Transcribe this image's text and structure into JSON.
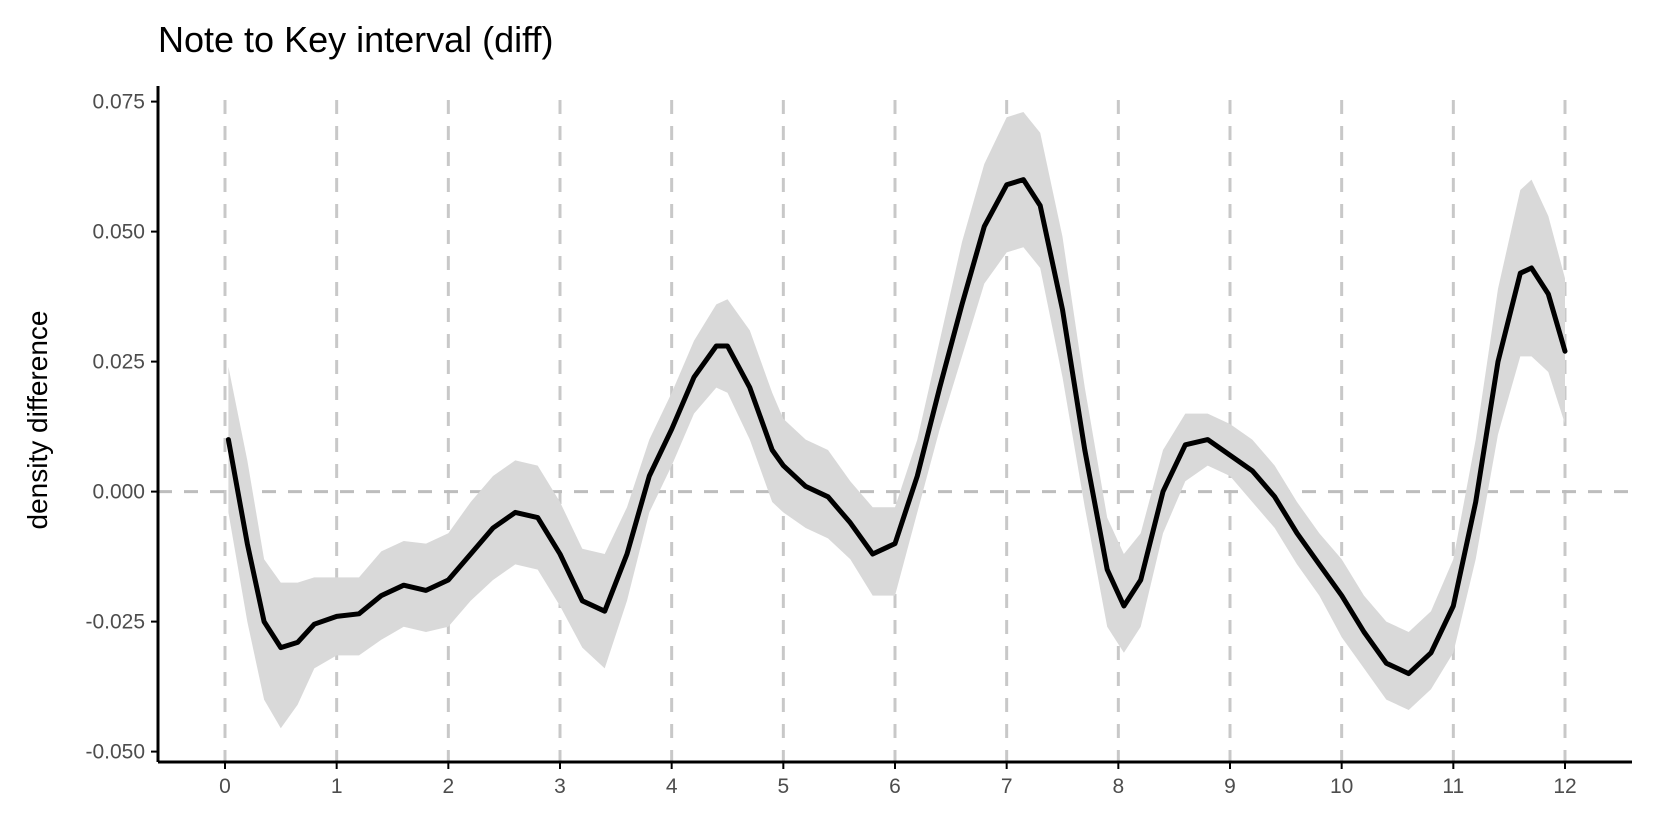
{
  "chart_data": {
    "type": "line",
    "title": "Note to Key interval (diff)",
    "xlabel": "",
    "ylabel": "density difference",
    "xlim": [
      -0.6,
      12.6
    ],
    "ylim": [
      -0.052,
      0.078
    ],
    "x_ticks": [
      0,
      1,
      2,
      3,
      4,
      5,
      6,
      7,
      8,
      9,
      10,
      11,
      12
    ],
    "x_tick_labels": [
      "0",
      "1",
      "2",
      "3",
      "4",
      "5",
      "6",
      "7",
      "8",
      "9",
      "10",
      "11",
      "12"
    ],
    "y_ticks": [
      -0.05,
      -0.025,
      0,
      0.025,
      0.05,
      0.075
    ],
    "y_tick_labels": [
      "-0.050",
      "-0.025",
      "0.000",
      "0.025",
      "0.050",
      "0.075"
    ],
    "reference_lines": {
      "vertical_x": [
        0,
        1,
        2,
        3,
        4,
        5,
        6,
        7,
        8,
        9,
        10,
        11,
        12
      ],
      "horizontal_y": [
        0
      ]
    },
    "grid": false,
    "colors": {
      "line": "#000000",
      "ribbon": "#d9d9d9",
      "reference": "#c8c8c8",
      "axis": "#000000"
    },
    "series": [
      {
        "x": [
          0.03,
          0.2,
          0.35,
          0.5,
          0.65,
          0.8,
          1.0,
          1.2,
          1.4,
          1.6,
          1.8,
          2.0,
          2.2,
          2.4,
          2.6,
          2.8,
          3.0,
          3.2,
          3.4,
          3.6,
          3.8,
          4.0,
          4.2,
          4.4,
          4.5,
          4.7,
          4.9,
          5.0,
          5.2,
          5.4,
          5.6,
          5.8,
          6.0,
          6.2,
          6.4,
          6.6,
          6.8,
          7.0,
          7.15,
          7.3,
          7.5,
          7.7,
          7.9,
          8.05,
          8.2,
          8.4,
          8.6,
          8.8,
          9.0,
          9.2,
          9.4,
          9.6,
          9.8,
          10.0,
          10.2,
          10.4,
          10.6,
          10.8,
          11.0,
          11.2,
          11.4,
          11.6,
          11.7,
          11.85,
          12.0
        ],
        "y": [
          0.01,
          -0.01,
          -0.025,
          -0.03,
          -0.029,
          -0.0255,
          -0.024,
          -0.0235,
          -0.02,
          -0.018,
          -0.019,
          -0.017,
          -0.012,
          -0.007,
          -0.004,
          -0.005,
          -0.012,
          -0.021,
          -0.023,
          -0.012,
          0.003,
          0.012,
          0.022,
          0.028,
          0.028,
          0.02,
          0.008,
          0.005,
          0.001,
          -0.001,
          -0.006,
          -0.012,
          -0.01,
          0.003,
          0.02,
          0.036,
          0.051,
          0.059,
          0.06,
          0.055,
          0.035,
          0.008,
          -0.015,
          -0.022,
          -0.017,
          0.0,
          0.009,
          0.01,
          0.007,
          0.004,
          -0.001,
          -0.008,
          -0.014,
          -0.02,
          -0.027,
          -0.033,
          -0.035,
          -0.031,
          -0.022,
          -0.002,
          0.025,
          0.042,
          0.043,
          0.038,
          0.027
        ],
        "upper": [
          0.024,
          0.006,
          -0.013,
          -0.0175,
          -0.0175,
          -0.0165,
          -0.0165,
          -0.0165,
          -0.0115,
          -0.0095,
          -0.01,
          -0.008,
          -0.002,
          0.003,
          0.006,
          0.005,
          -0.002,
          -0.011,
          -0.012,
          -0.003,
          0.01,
          0.019,
          0.029,
          0.036,
          0.037,
          0.031,
          0.019,
          0.014,
          0.01,
          0.008,
          0.002,
          -0.003,
          -0.003,
          0.01,
          0.029,
          0.048,
          0.063,
          0.072,
          0.073,
          0.069,
          0.049,
          0.02,
          -0.005,
          -0.012,
          -0.008,
          0.008,
          0.015,
          0.015,
          0.013,
          0.01,
          0.005,
          -0.002,
          -0.008,
          -0.013,
          -0.02,
          -0.025,
          -0.027,
          -0.023,
          -0.013,
          0.01,
          0.039,
          0.058,
          0.06,
          0.053,
          0.041
        ],
        "lower": [
          -0.004,
          -0.025,
          -0.04,
          -0.0455,
          -0.041,
          -0.034,
          -0.0315,
          -0.0315,
          -0.0285,
          -0.026,
          -0.027,
          -0.026,
          -0.021,
          -0.017,
          -0.014,
          -0.015,
          -0.022,
          -0.03,
          -0.034,
          -0.021,
          -0.004,
          0.005,
          0.015,
          0.02,
          0.019,
          0.01,
          -0.002,
          -0.004,
          -0.007,
          -0.009,
          -0.013,
          -0.02,
          -0.02,
          -0.004,
          0.012,
          0.026,
          0.04,
          0.046,
          0.047,
          0.043,
          0.022,
          -0.003,
          -0.026,
          -0.031,
          -0.026,
          -0.008,
          0.002,
          0.005,
          0.003,
          -0.002,
          -0.007,
          -0.014,
          -0.02,
          -0.028,
          -0.034,
          -0.04,
          -0.042,
          -0.038,
          -0.031,
          -0.013,
          0.011,
          0.026,
          0.026,
          0.023,
          0.013
        ]
      }
    ]
  }
}
